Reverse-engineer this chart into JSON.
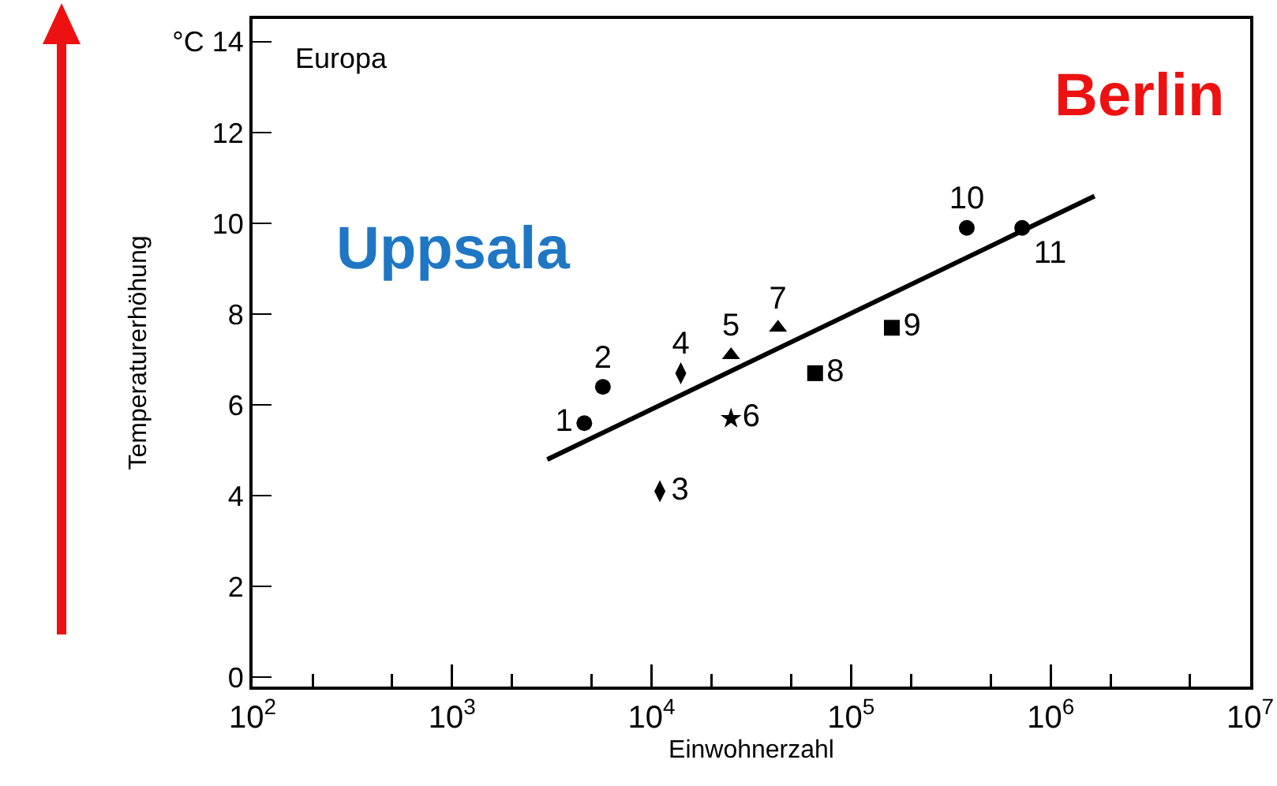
{
  "chart_data": {
    "type": "scatter",
    "xlabel": "Einwohnerzahl",
    "ylabel": "Temperaturerhöhung",
    "log": "x",
    "grid": false,
    "legend": false,
    "xlim": [
      100,
      10000000
    ],
    "xticks": [
      {
        "value": 100,
        "label": "10$^{2}$"
      },
      {
        "value": 1000,
        "label": "10$^{3}$"
      },
      {
        "value": 10000,
        "label": "10$^{4}$"
      },
      {
        "value": 100000,
        "label": "10$^{5}$"
      },
      {
        "value": 1000000,
        "label": "10$^{6}$"
      },
      {
        "value": 10000000,
        "label": "10$^{7}$"
      }
    ],
    "ylim": [
      -0.2,
      14.5
    ],
    "yticks": [
      0,
      2,
      4,
      6,
      8,
      10,
      12,
      {
        "value": 14,
        "label": "°C 14"
      }
    ],
    "series": [
      {
        "name": "1",
        "color": "#000000",
        "marker": "circle",
        "x": [
          4600
        ],
        "values": [
          5.6
        ]
      },
      {
        "name": "2",
        "color": "#000000",
        "marker": "circle",
        "x": [
          5700
        ],
        "values": [
          6.4
        ]
      },
      {
        "name": "3",
        "color": "#000000",
        "marker": "diamond",
        "x": [
          11000
        ],
        "values": [
          4.1
        ]
      },
      {
        "name": "4",
        "color": "#000000",
        "marker": "diamond",
        "x": [
          14000
        ],
        "values": [
          6.7
        ]
      },
      {
        "name": "5",
        "color": "#000000",
        "marker": "triangle",
        "x": [
          25000
        ],
        "values": [
          7.1
        ]
      },
      {
        "name": "6",
        "color": "#000000",
        "marker": "star",
        "x": [
          25000
        ],
        "values": [
          5.7
        ]
      },
      {
        "name": "7",
        "color": "#000000",
        "marker": "triangle",
        "x": [
          43000
        ],
        "values": [
          7.7
        ]
      },
      {
        "name": "8",
        "color": "#000000",
        "marker": "square",
        "x": [
          66000
        ],
        "values": [
          6.7
        ]
      },
      {
        "name": "9",
        "color": "#000000",
        "marker": "square",
        "x": [
          160000
        ],
        "values": [
          7.7
        ]
      },
      {
        "name": "10",
        "color": "#000000",
        "marker": "circle",
        "x": [
          380000
        ],
        "values": [
          9.9
        ]
      },
      {
        "name": "11",
        "color": "#000000",
        "marker": "circle",
        "x": [
          720000
        ],
        "values": [
          9.9
        ]
      },
      {
        "type": "line",
        "color": "#000000",
        "line_style": "solid",
        "marker": "none",
        "x": [
          3000,
          1660000
        ],
        "values": [
          4.8,
          10.6
        ]
      }
    ],
    "annotations": [
      "Europa",
      "Uppsala",
      "Berlin"
    ]
  }
}
